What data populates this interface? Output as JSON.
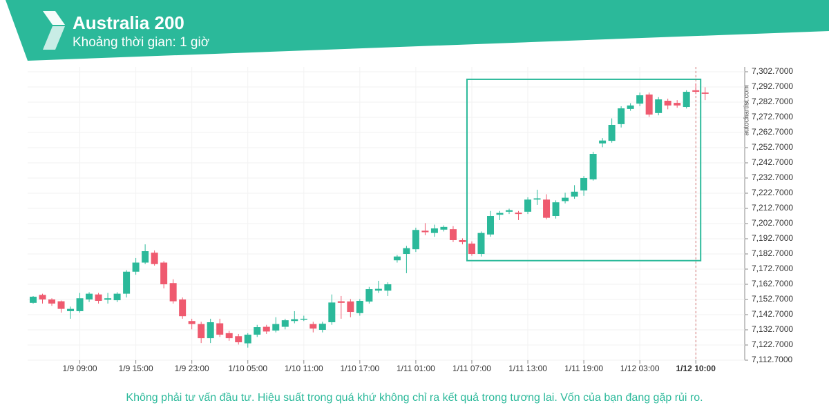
{
  "chart_data": {
    "type": "candlestick",
    "title": "Australia 200",
    "subtitle": "Khoảng thời gian: 1 giờ",
    "watermark": "autochartist.com",
    "disclaimer": "Không phải tư vấn đầu tư. Hiệu suất trong quá khứ không chỉ ra kết quả trong tương lai. Vốn của bạn đang gặp rủi ro.",
    "up_color": "#2bb99a",
    "down_color": "#ef5a6f",
    "categories": [
      null,
      null,
      null,
      null,
      null,
      "1/9 09:00",
      null,
      null,
      null,
      null,
      null,
      "1/9 15:00",
      null,
      null,
      null,
      null,
      null,
      "1/9 23:00",
      null,
      null,
      null,
      null,
      null,
      "1/10 05:00",
      null,
      null,
      null,
      null,
      null,
      "1/10 11:00",
      null,
      null,
      null,
      null,
      null,
      "1/10 17:00",
      null,
      null,
      null,
      null,
      null,
      "1/11 01:00",
      null,
      null,
      null,
      null,
      null,
      "1/11 07:00",
      null,
      null,
      null,
      null,
      null,
      "1/11 13:00",
      null,
      null,
      null,
      null,
      null,
      "1/11 19:00",
      null,
      null,
      null,
      null,
      null,
      "1/12 03:00",
      null,
      null,
      null,
      null,
      null,
      "1/12 10:00",
      null
    ],
    "open": [
      7150.5,
      7155.7,
      7152.7,
      7151.5,
      7145,
      7145,
      7152.7,
      7156,
      7152.5,
      7152.2,
      7156.5,
      7171,
      7177,
      7183.5,
      7177,
      7163.5,
      7152.7,
      7138.5,
      7136.5,
      7127.2,
      7137,
      7130.5,
      7128.5,
      7123.8,
      7129.5,
      7134.7,
      7132.2,
      7134.7,
      7138.5,
      7139.5,
      7136.5,
      7132.7,
      7137.7,
      7151.5,
      7151.4,
      7143.7,
      7151.3,
      7158.5,
      7158.5,
      7178.5,
      7182.7,
      7185.8,
      7198,
      7196.5,
      7198.7,
      7199,
      7191.8,
      7189.5,
      7182.7,
      7195.5,
      7208.5,
      7210.5,
      7209.9,
      7210.5,
      7218.5,
      7218.5,
      7207.7,
      7217.5,
      7220.5,
      7224.5,
      7231.8,
      7255.5,
      7257.2,
      7268.2,
      7278.2,
      7281.7,
      7287.7,
      7275.5,
      7283.6,
      7282.2,
      7279.5,
      7290.5,
      7289
    ],
    "high": [
      7155,
      7156.5,
      7153.5,
      7152,
      7148,
      7157,
      7157.5,
      7157,
      7157,
      7157.5,
      7172,
      7180,
      7189,
      7185,
      7178,
      7166,
      7154,
      7140,
      7138,
      7140,
      7140,
      7132,
      7130,
      7130.5,
      7136,
      7136,
      7141,
      7140,
      7145,
      7142,
      7138,
      7138,
      7156,
      7155,
      7153,
      7153,
      7161,
      7165,
      7164,
      7182,
      7188,
      7200,
      7203,
      7202,
      7201.5,
      7201,
      7193,
      7191,
      7197.5,
      7211,
      7211,
      7212.5,
      7211,
      7220,
      7225,
      7222,
      7218,
      7223,
      7228,
      7234,
      7250,
      7259,
      7272,
      7280,
      7282,
      7289,
      7289,
      7286,
      7285,
      7284,
      7290.5,
      7295,
      7292.5
    ],
    "low": [
      7150,
      7150,
      7148.5,
      7144,
      7140,
      7144,
      7151,
      7150,
      7150,
      7151,
      7154,
      7169,
      7176,
      7175,
      7160,
      7150,
      7140,
      7133,
      7124,
      7124,
      7128,
      7125.5,
      7123,
      7121,
      7128,
      7130,
      7131,
      7133,
      7137,
      7138.5,
      7131,
      7131,
      7136,
      7140,
      7141,
      7142,
      7150,
      7157,
      7155,
      7177,
      7170,
      7184,
      7195,
      7194,
      7197.5,
      7190.5,
      7189,
      7181.5,
      7181,
      7194,
      7205,
      7209,
      7205,
      7209,
      7215,
      7205.5,
      7206,
      7216,
      7219,
      7221,
      7231,
      7253,
      7256,
      7266,
      7277,
      7280,
      7273,
      7274,
      7278,
      7279,
      7278.5,
      7288,
      7284
    ],
    "close": [
      7154.5,
      7152.7,
      7150,
      7146.5,
      7146.5,
      7153.5,
      7156.5,
      7151.8,
      7153.5,
      7156.5,
      7171,
      7177,
      7184.5,
      7176,
      7162.7,
      7151.5,
      7141.7,
      7136.5,
      7127.2,
      7137.7,
      7129.5,
      7127.2,
      7124.5,
      7129.5,
      7134.5,
      7131.6,
      7136.5,
      7139,
      7139.7,
      7140,
      7133.5,
      7136.7,
      7150.7,
      7150.5,
      7144.5,
      7151.8,
      7159.5,
      7159.7,
      7162.7,
      7181,
      7186.5,
      7198.5,
      7197,
      7199.5,
      7200.5,
      7191.8,
      7190.5,
      7182.7,
      7196.5,
      7207.7,
      7209.7,
      7211.5,
      7209,
      7218.5,
      7219.3,
      7206.5,
      7216.7,
      7219.7,
      7223.7,
      7232.7,
      7248.6,
      7257.4,
      7267.7,
      7278.6,
      7280.5,
      7287.2,
      7274.5,
      7284.5,
      7280.5,
      7280.5,
      7289.5,
      7289.5,
      7288.2
    ],
    "ylim": [
      7112.7,
      7302.7
    ],
    "yticks": [
      {
        "value": 7112.7,
        "label": "7,112.7000"
      },
      {
        "value": 7122.7,
        "label": "7,122.7000"
      },
      {
        "value": 7132.7,
        "label": "7,132.7000"
      },
      {
        "value": 7142.7,
        "label": "7,142.7000"
      },
      {
        "value": 7152.7,
        "label": "7,152.7000"
      },
      {
        "value": 7162.7,
        "label": "7,162.7000"
      },
      {
        "value": 7172.7,
        "label": "7,172.7000"
      },
      {
        "value": 7182.7,
        "label": "7,182.7000"
      },
      {
        "value": 7192.7,
        "label": "7,192.7000"
      },
      {
        "value": 7202.7,
        "label": "7,202.7000"
      },
      {
        "value": 7212.7,
        "label": "7,212.7000"
      },
      {
        "value": 7222.7,
        "label": "7,222.7000"
      },
      {
        "value": 7232.7,
        "label": "7,232.7000"
      },
      {
        "value": 7242.7,
        "label": "7,242.7000"
      },
      {
        "value": 7252.7,
        "label": "7,252.7000"
      },
      {
        "value": 7262.7,
        "label": "7,262.7000"
      },
      {
        "value": 7272.7,
        "label": "7,272.7000"
      },
      {
        "value": 7282.7,
        "label": "7,282.7000"
      },
      {
        "value": 7292.7,
        "label": "7,292.7000"
      },
      {
        "value": 7302.7,
        "label": "7,302.7000"
      }
    ],
    "grid": true
  }
}
